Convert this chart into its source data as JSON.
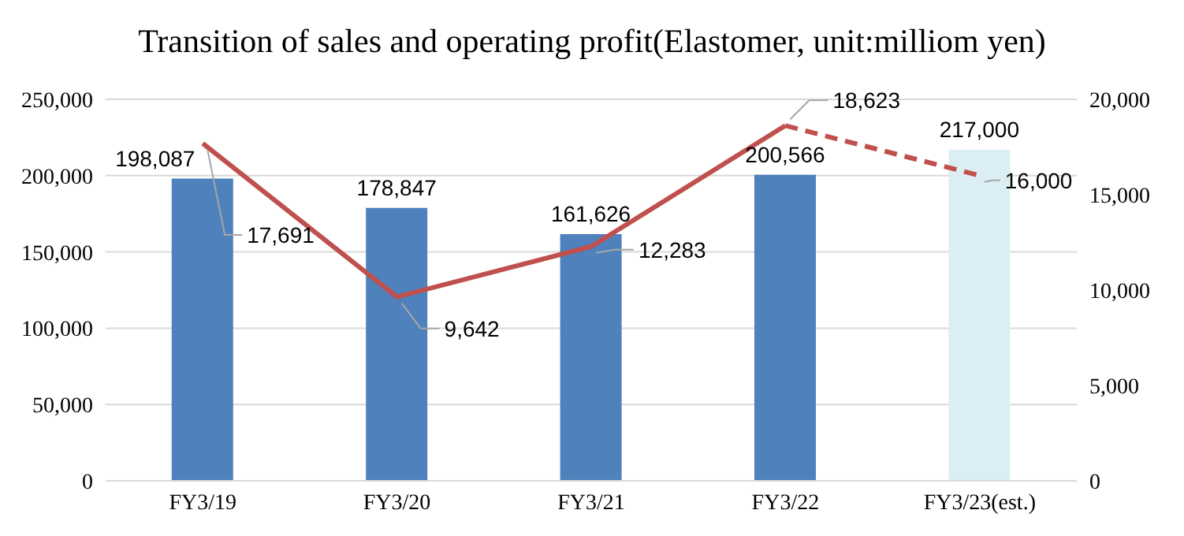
{
  "chart_data": {
    "type": "bar",
    "title": "Transition of sales and operating profit(Elastomer, unit:milliom yen)",
    "categories": [
      "FY3/19",
      "FY3/20",
      "FY3/21",
      "FY3/22",
      "FY3/23(est.)"
    ],
    "series": [
      {
        "colors": [
          "#4f81bd",
          "#4f81bd",
          "#4f81bd",
          "#4f81bd",
          "#daeef3"
        ],
        "values": [
          198087,
          178847,
          161626,
          200566,
          217000
        ],
        "value_labels": [
          "198,087",
          "178,847",
          "161,626",
          "200,566",
          "217,000"
        ]
      },
      {
        "type": "line",
        "axis": "y2",
        "color": "#c0504d",
        "line_style": "solid",
        "values": [
          17691,
          9642,
          12283,
          18623,
          null
        ],
        "value_labels": [
          "17,691",
          "9,642",
          "12,283",
          "18,623",
          null
        ]
      },
      {
        "type": "line",
        "axis": "y2",
        "color": "#c0504d",
        "line_style": "dashed",
        "values": [
          null,
          null,
          null,
          18623,
          16000
        ],
        "value_labels": [
          null,
          null,
          null,
          null,
          "16,000"
        ]
      }
    ],
    "ylim": [
      0,
      250000
    ],
    "yticks": [
      0,
      {
        "value": 50000,
        "label": "50,000"
      },
      {
        "value": 100000,
        "label": "100,000"
      },
      {
        "value": 150000,
        "label": "150,000"
      },
      {
        "value": 200000,
        "label": "200,000"
      },
      {
        "value": 250000,
        "label": "250,000"
      }
    ],
    "y2lim": [
      0,
      20000
    ],
    "y2ticks": [
      0,
      {
        "value": 5000,
        "label": "5,000"
      },
      {
        "value": 10000,
        "label": "10,000"
      },
      {
        "value": 15000,
        "label": "15,000"
      },
      {
        "value": 20000,
        "label": "20,000"
      }
    ],
    "grid": "y",
    "legend": false,
    "marker": "none"
  }
}
